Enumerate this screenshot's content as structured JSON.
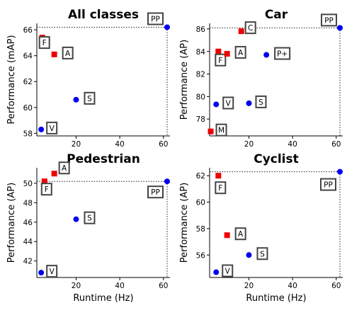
{
  "chart_data": [
    {
      "type": "scatter",
      "title": "All classes",
      "xlabel": "",
      "ylabel": "Performance (mAP)",
      "xlim": [
        2,
        63
      ],
      "ylim": [
        57.8,
        66.5
      ],
      "xticks": [
        "20",
        "40",
        "60"
      ],
      "xtick_values": [
        20,
        40,
        60
      ],
      "yticks": [
        "58",
        "60",
        "62",
        "64",
        "66"
      ],
      "ytick_values": [
        58,
        60,
        62,
        64,
        66
      ],
      "reference_lines": {
        "x": 61.7,
        "y": 66.2
      },
      "points": [
        {
          "label": "PP",
          "x": 61.7,
          "y": 66.2,
          "color": "#0000ee",
          "shape": "circle"
        },
        {
          "label": "F",
          "x": 4.5,
          "y": 65.4,
          "color": "#ee0000",
          "shape": "square"
        },
        {
          "label": "A",
          "x": 10,
          "y": 64.1,
          "color": "#ee0000",
          "shape": "square"
        },
        {
          "label": "S",
          "x": 20,
          "y": 60.6,
          "color": "#0000ee",
          "shape": "circle"
        },
        {
          "label": "V",
          "x": 4,
          "y": 58.3,
          "color": "#0000ee",
          "shape": "circle"
        }
      ]
    },
    {
      "type": "scatter",
      "title": "Car",
      "xlabel": "",
      "ylabel": "Performance (AP)",
      "xlim": [
        2,
        63
      ],
      "ylim": [
        76.5,
        86.5
      ],
      "xticks": [
        "20",
        "40",
        "60"
      ],
      "xtick_values": [
        20,
        40,
        60
      ],
      "yticks": [
        "78",
        "80",
        "82",
        "84",
        "86"
      ],
      "ytick_values": [
        78,
        80,
        82,
        84,
        86
      ],
      "reference_lines": {
        "x": 61.7,
        "y": 86.1
      },
      "points": [
        {
          "label": "PP",
          "x": 61.7,
          "y": 86.1,
          "color": "#0000ee",
          "shape": "circle"
        },
        {
          "label": "C",
          "x": 16.5,
          "y": 85.8,
          "color": "#ee0000",
          "shape": "square"
        },
        {
          "label": "F",
          "x": 6,
          "y": 84.0,
          "color": "#ee0000",
          "shape": "square"
        },
        {
          "label": "A",
          "x": 10,
          "y": 83.8,
          "color": "#ee0000",
          "shape": "square"
        },
        {
          "label": "P+",
          "x": 28,
          "y": 83.7,
          "color": "#0000ee",
          "shape": "circle"
        },
        {
          "label": "V",
          "x": 5,
          "y": 79.3,
          "color": "#0000ee",
          "shape": "circle"
        },
        {
          "label": "S",
          "x": 20,
          "y": 79.4,
          "color": "#0000ee",
          "shape": "circle"
        },
        {
          "label": "M",
          "x": 2.5,
          "y": 76.9,
          "color": "#ee0000",
          "shape": "square"
        }
      ]
    },
    {
      "type": "scatter",
      "title": "Pedestrian",
      "xlabel": "Runtime (Hz)",
      "ylabel": "Performance (AP)",
      "xlim": [
        2,
        63
      ],
      "ylim": [
        40.3,
        51.6
      ],
      "xticks": [
        "20",
        "40",
        "60"
      ],
      "xtick_values": [
        20,
        40,
        60
      ],
      "yticks": [
        "42",
        "44",
        "46",
        "48",
        "50"
      ],
      "ytick_values": [
        42,
        44,
        46,
        48,
        50
      ],
      "reference_lines": {
        "x": 61.7,
        "y": 50.2
      },
      "points": [
        {
          "label": "PP",
          "x": 61.7,
          "y": 50.2,
          "color": "#0000ee",
          "shape": "circle"
        },
        {
          "label": "A",
          "x": 10,
          "y": 51.0,
          "color": "#ee0000",
          "shape": "square"
        },
        {
          "label": "F",
          "x": 5.5,
          "y": 50.2,
          "color": "#ee0000",
          "shape": "square"
        },
        {
          "label": "S",
          "x": 20,
          "y": 46.3,
          "color": "#0000ee",
          "shape": "circle"
        },
        {
          "label": "V",
          "x": 4,
          "y": 40.8,
          "color": "#0000ee",
          "shape": "circle"
        }
      ]
    },
    {
      "type": "scatter",
      "title": "Cyclist",
      "xlabel": "Runtime (Hz)",
      "ylabel": "Performance (AP)",
      "xlim": [
        2,
        63
      ],
      "ylim": [
        54.3,
        62.6
      ],
      "xticks": [
        "20",
        "40",
        "60"
      ],
      "xtick_values": [
        20,
        40,
        60
      ],
      "yticks": [
        "56",
        "58",
        "60",
        "62"
      ],
      "ytick_values": [
        56,
        58,
        60,
        62
      ],
      "reference_lines": {
        "x": 61.7,
        "y": 62.3
      },
      "points": [
        {
          "label": "PP",
          "x": 61.7,
          "y": 62.3,
          "color": "#0000ee",
          "shape": "circle"
        },
        {
          "label": "F",
          "x": 6,
          "y": 62.0,
          "color": "#ee0000",
          "shape": "square"
        },
        {
          "label": "A",
          "x": 10,
          "y": 57.5,
          "color": "#ee0000",
          "shape": "square"
        },
        {
          "label": "S",
          "x": 20,
          "y": 56.0,
          "color": "#0000ee",
          "shape": "circle"
        },
        {
          "label": "V",
          "x": 5,
          "y": 54.7,
          "color": "#0000ee",
          "shape": "circle"
        }
      ]
    }
  ]
}
